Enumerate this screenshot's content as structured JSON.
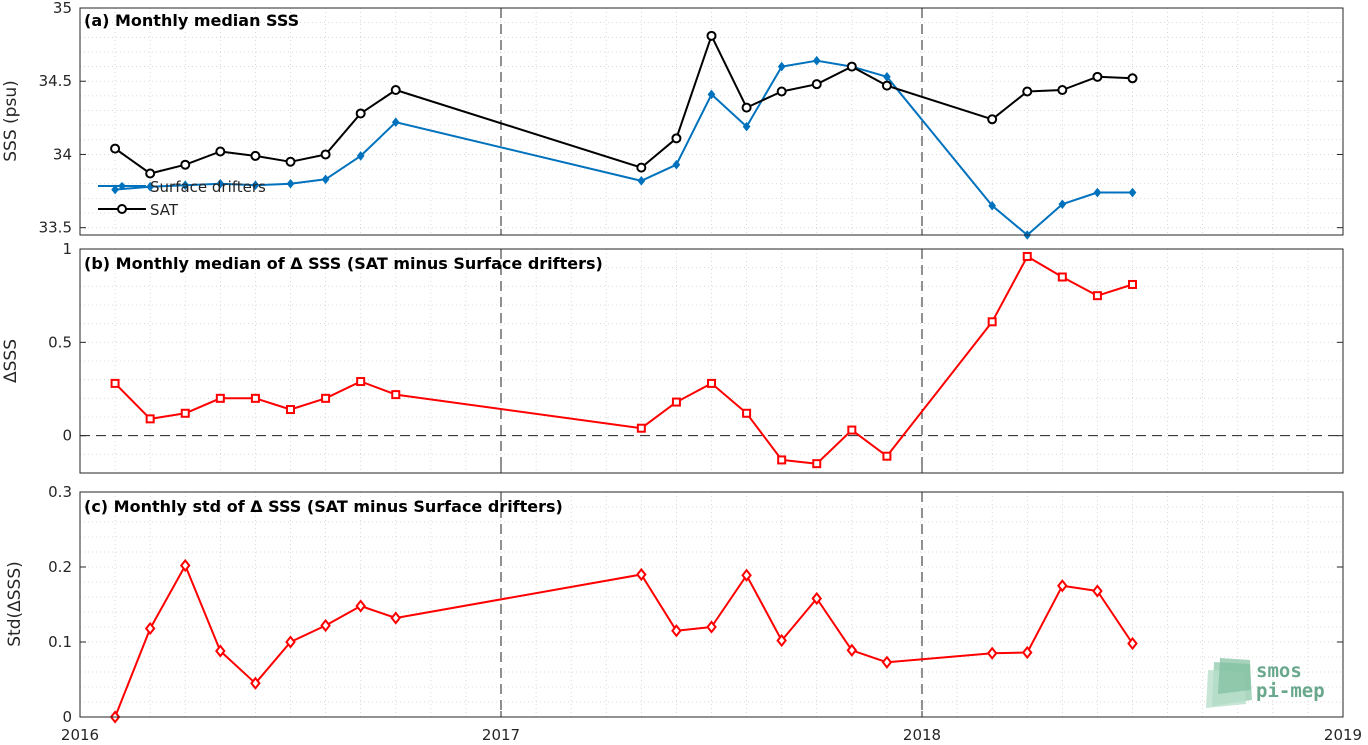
{
  "figure": {
    "x_ticks": [
      "2016",
      "2017",
      "2018",
      "2019"
    ],
    "logo": {
      "line1": "smos",
      "line2": "pi-mep"
    }
  },
  "chart_data": [
    {
      "type": "line",
      "title": "(a) Monthly median SSS",
      "ylabel": "SSS (psu)",
      "ylim": [
        33.45,
        35
      ],
      "y_ticks": [
        "33.5",
        "34",
        "34.5",
        "35"
      ],
      "x_range": [
        "2016-01",
        "2019-01"
      ],
      "grid": true,
      "legend_position": "lower-left",
      "series": [
        {
          "name": "Surface drifters",
          "color": "#0072bd",
          "marker": "diamond",
          "x": [
            "2016-02",
            "2016-03",
            "2016-04",
            "2016-05",
            "2016-06",
            "2016-07",
            "2016-08",
            "2016-09",
            "2016-10",
            "2017-05",
            "2017-06",
            "2017-07",
            "2017-08",
            "2017-09",
            "2017-10",
            "2017-11",
            "2017-12",
            "2018-03",
            "2018-04",
            "2018-05",
            "2018-06",
            "2018-07"
          ],
          "values": [
            33.76,
            33.78,
            33.79,
            33.8,
            33.79,
            33.8,
            33.83,
            33.99,
            34.22,
            33.82,
            33.93,
            34.41,
            34.19,
            34.6,
            34.64,
            34.6,
            34.53,
            33.65,
            33.45,
            33.66,
            33.74,
            33.74
          ]
        },
        {
          "name": "SAT",
          "color": "#000000",
          "marker": "circle",
          "x": [
            "2016-02",
            "2016-03",
            "2016-04",
            "2016-05",
            "2016-06",
            "2016-07",
            "2016-08",
            "2016-09",
            "2016-10",
            "2017-05",
            "2017-06",
            "2017-07",
            "2017-08",
            "2017-09",
            "2017-10",
            "2017-11",
            "2017-12",
            "2018-03",
            "2018-04",
            "2018-05",
            "2018-06",
            "2018-07"
          ],
          "values": [
            34.04,
            33.87,
            33.93,
            34.02,
            33.99,
            33.95,
            34.0,
            34.28,
            34.44,
            33.91,
            34.11,
            34.81,
            34.32,
            34.43,
            34.48,
            34.6,
            34.47,
            34.24,
            34.43,
            34.44,
            34.53,
            34.52
          ]
        }
      ]
    },
    {
      "type": "line",
      "title": "(b) Monthly median of Δ SSS (SAT minus Surface drifters)",
      "ylabel": "ΔSSS",
      "ylim": [
        -0.2,
        1
      ],
      "y_ticks": [
        "0",
        "0.5",
        "1"
      ],
      "x_range": [
        "2016-01",
        "2019-01"
      ],
      "grid": true,
      "series": [
        {
          "color": "#ff0000",
          "marker": "square",
          "x": [
            "2016-02",
            "2016-03",
            "2016-04",
            "2016-05",
            "2016-06",
            "2016-07",
            "2016-08",
            "2016-09",
            "2016-10",
            "2017-05",
            "2017-06",
            "2017-07",
            "2017-08",
            "2017-09",
            "2017-10",
            "2017-11",
            "2017-12",
            "2018-03",
            "2018-04",
            "2018-05",
            "2018-06",
            "2018-07"
          ],
          "values": [
            0.28,
            0.09,
            0.12,
            0.2,
            0.2,
            0.14,
            0.2,
            0.29,
            0.22,
            0.04,
            0.18,
            0.28,
            0.12,
            -0.13,
            -0.15,
            0.03,
            -0.11,
            0.61,
            0.96,
            0.85,
            0.75,
            0.81
          ]
        }
      ]
    },
    {
      "type": "line",
      "title": "(c) Monthly std of Δ SSS (SAT minus Surface drifters)",
      "ylabel": "Std(ΔSSS)",
      "ylim": [
        0,
        0.3
      ],
      "y_ticks": [
        "0",
        "0.1",
        "0.2",
        "0.3"
      ],
      "x_range": [
        "2016-01",
        "2019-01"
      ],
      "grid": true,
      "series": [
        {
          "color": "#ff0000",
          "marker": "diamond",
          "x": [
            "2016-02",
            "2016-03",
            "2016-04",
            "2016-05",
            "2016-06",
            "2016-07",
            "2016-08",
            "2016-09",
            "2016-10",
            "2017-05",
            "2017-06",
            "2017-07",
            "2017-08",
            "2017-09",
            "2017-10",
            "2017-11",
            "2017-12",
            "2018-03",
            "2018-04",
            "2018-05",
            "2018-06",
            "2018-07"
          ],
          "values": [
            0.0,
            0.118,
            0.202,
            0.088,
            0.045,
            0.1,
            0.122,
            0.148,
            0.132,
            0.19,
            0.115,
            0.12,
            0.189,
            0.102,
            0.158,
            0.089,
            0.073,
            0.085,
            0.086,
            0.175,
            0.168,
            0.098
          ]
        }
      ]
    }
  ]
}
